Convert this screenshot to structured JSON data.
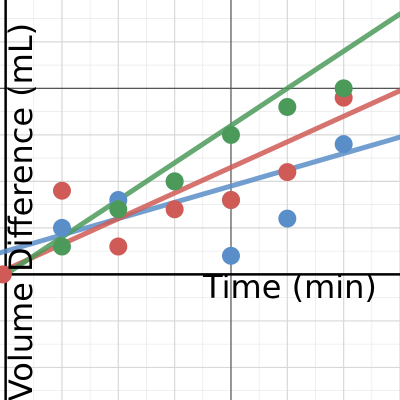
{
  "chart_data": {
    "type": "scatter",
    "xlabel": "Time (min)",
    "ylabel": "Volume Difference (mL)",
    "xlim": [
      -0.1,
      7.0
    ],
    "ylim": [
      -2.7,
      5.9
    ],
    "grid": true,
    "colors": {
      "blue": "#5a8ec8",
      "red": "#d05a55",
      "green": "#4b9a5a",
      "grid": "#d8d8d8",
      "axis": "#000000"
    },
    "series": [
      {
        "color": "blue",
        "points": [
          [
            1,
            1.0
          ],
          [
            2,
            1.6
          ],
          [
            3,
            2.0
          ],
          [
            4,
            1.6
          ],
          [
            5,
            1.2
          ],
          [
            6,
            2.8
          ],
          [
            4,
            0.4
          ]
        ],
        "trend": {
          "slope": 0.35,
          "intercept": 0.5
        }
      },
      {
        "color": "red",
        "points": [
          [
            -0.05,
            0.0
          ],
          [
            1,
            1.8
          ],
          [
            2,
            0.6
          ],
          [
            3,
            1.4
          ],
          [
            4,
            1.6
          ],
          [
            5,
            2.2
          ],
          [
            6,
            3.8
          ]
        ],
        "trend": {
          "slope": 0.55,
          "intercept": 0.1
        }
      },
      {
        "color": "green",
        "points": [
          [
            1,
            0.6
          ],
          [
            2,
            1.4
          ],
          [
            3,
            2.0
          ],
          [
            4,
            3.0
          ],
          [
            5,
            3.6
          ],
          [
            6,
            4.0
          ]
        ],
        "trend": {
          "slope": 0.8,
          "intercept": 0.0
        }
      }
    ]
  }
}
